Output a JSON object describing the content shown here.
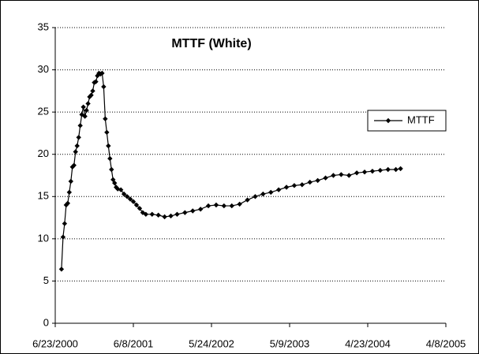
{
  "chart_data": {
    "type": "line",
    "title": "MTTF (White)",
    "x": [
      "7/21/2000",
      "7/28/2000",
      "8/4/2000",
      "8/11/2000",
      "8/18/2000",
      "8/25/2000",
      "9/1/2000",
      "9/8/2000",
      "9/15/2000",
      "9/22/2000",
      "9/29/2000",
      "10/6/2000",
      "10/13/2000",
      "10/20/2000",
      "10/27/2000",
      "11/3/2000",
      "11/10/2000",
      "11/17/2000",
      "11/24/2000",
      "12/1/2000",
      "12/8/2000",
      "12/15/2000",
      "12/22/2000",
      "12/29/2000",
      "1/5/2001",
      "1/12/2001",
      "1/19/2001",
      "1/26/2001",
      "2/2/2001",
      "2/9/2001",
      "2/16/2001",
      "2/23/2001",
      "3/2/2001",
      "3/9/2001",
      "3/16/2001",
      "3/23/2001",
      "3/30/2001",
      "4/13/2001",
      "4/27/2001",
      "5/11/2001",
      "5/25/2001",
      "6/8/2001",
      "6/22/2001",
      "7/6/2001",
      "7/20/2001",
      "8/3/2001",
      "8/31/2001",
      "9/28/2001",
      "10/26/2001",
      "11/23/2001",
      "12/21/2001",
      "1/25/2002",
      "3/1/2002",
      "4/5/2002",
      "5/10/2002",
      "6/14/2002",
      "7/19/2002",
      "8/23/2002",
      "9/27/2002",
      "11/1/2002",
      "12/6/2002",
      "1/10/2003",
      "2/14/2003",
      "3/21/2003",
      "4/25/2003",
      "5/30/2003",
      "7/4/2003",
      "8/8/2003",
      "9/12/2003",
      "10/17/2003",
      "11/21/2003",
      "12/26/2003",
      "1/30/2004",
      "3/5/2004",
      "4/9/2004",
      "5/14/2004",
      "6/18/2004",
      "7/23/2004",
      "8/27/2004",
      "9/17/2004"
    ],
    "series": [
      {
        "name": "MTTF",
        "color": "#000000",
        "values": [
          6.4,
          10.2,
          11.8,
          14,
          14.2,
          15.5,
          16.8,
          18.5,
          18.7,
          20.3,
          21,
          22,
          23.4,
          24.7,
          25.6,
          24.5,
          25.2,
          26,
          26.8,
          27,
          27.5,
          28.5,
          28.6,
          29.3,
          29.6,
          29.5,
          29.6,
          28,
          24.2,
          22.6,
          21,
          19.5,
          18.2,
          17,
          16.6,
          16.1,
          15.9,
          15.8,
          15.3,
          15,
          14.7,
          14.4,
          14,
          13.6,
          13.1,
          12.9,
          12.9,
          12.8,
          12.6,
          12.7,
          12.9,
          13.1,
          13.3,
          13.5,
          13.9,
          14,
          13.9,
          13.9,
          14.1,
          14.6,
          15,
          15.3,
          15.5,
          15.8,
          16.1,
          16.3,
          16.4,
          16.7,
          16.9,
          17.2,
          17.5,
          17.6,
          17.5,
          17.8,
          17.9,
          18,
          18.1,
          18.2,
          18.2,
          18.3
        ]
      }
    ],
    "xlim": [
      "6/23/2000",
      "4/8/2005"
    ],
    "xticks": [
      "6/23/2000",
      "6/8/2001",
      "5/24/2002",
      "5/9/2003",
      "4/23/2004",
      "4/8/2005"
    ],
    "ylim": [
      0,
      35
    ],
    "yticks": [
      0,
      5,
      10,
      15,
      20,
      25,
      30,
      35
    ],
    "grid": true,
    "legend": "right"
  }
}
